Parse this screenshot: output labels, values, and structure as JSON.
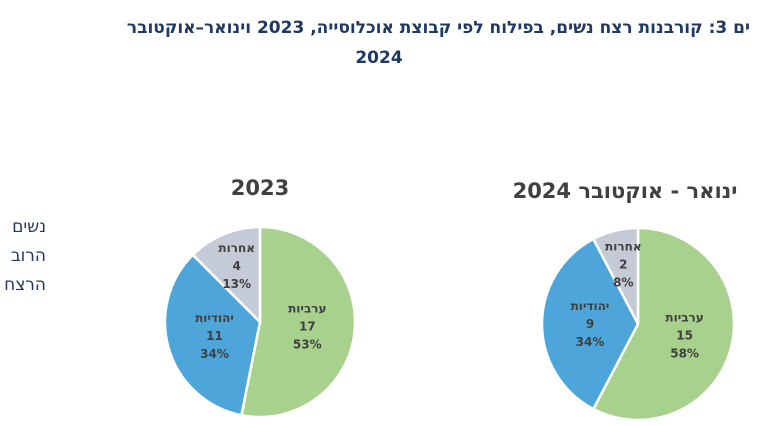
{
  "title_line1": "ים 3: קורבנות רצח נשים, בפילוח לפי קבוצת אוכלוסייה, 2023 וינואר–אוקטובר",
  "title_line2": "2024",
  "side_text": [
    "נשים",
    "הרוב",
    "הרצח"
  ],
  "colors": {
    "arab": "#a9d18e",
    "jewish": "#4ea5d9",
    "other": "#c5cbd6",
    "text": "#404040"
  },
  "chart_data": [
    {
      "type": "pie",
      "title": "2023",
      "slices": [
        {
          "label": "ערביות",
          "value": 17,
          "percent": "53%",
          "color": "#a9d18e"
        },
        {
          "label": "יהודיות",
          "value": 11,
          "percent": "34%",
          "color": "#4ea5d9"
        },
        {
          "label": "אחרות",
          "value": 4,
          "percent": "13%",
          "color": "#c5cbd6"
        }
      ]
    },
    {
      "type": "pie",
      "title": "ינואר - אוקטובר 2024",
      "slices": [
        {
          "label": "ערביות",
          "value": 15,
          "percent": "58%",
          "color": "#a9d18e"
        },
        {
          "label": "יהודיות",
          "value": 9,
          "percent": "34%",
          "color": "#4ea5d9"
        },
        {
          "label": "אחרות",
          "value": 2,
          "percent": "8%",
          "color": "#c5cbd6"
        }
      ]
    }
  ]
}
